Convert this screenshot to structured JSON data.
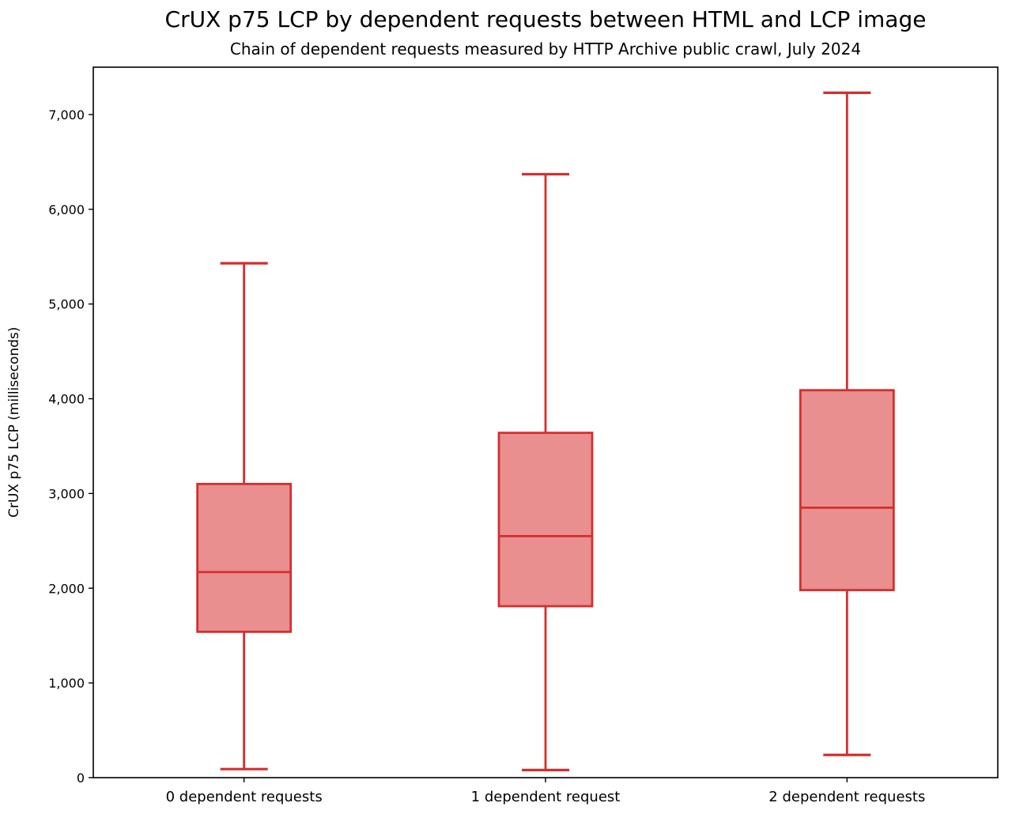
{
  "chart_data": {
    "type": "boxplot",
    "title": "CrUX p75 LCP by dependent requests between HTML and LCP image",
    "subtitle": "Chain of dependent requests measured by HTTP Archive public crawl, July 2024",
    "ylabel": "CrUX p75 LCP (milliseconds)",
    "xlabel": "",
    "categories": [
      "0 dependent requests",
      "1 dependent request",
      "2 dependent requests"
    ],
    "boxes": [
      {
        "whisker_low": 90,
        "q1": 1540,
        "median": 2170,
        "q3": 3100,
        "whisker_high": 5430
      },
      {
        "whisker_low": 80,
        "q1": 1810,
        "median": 2550,
        "q3": 3640,
        "whisker_high": 6370
      },
      {
        "whisker_low": 240,
        "q1": 1980,
        "median": 2850,
        "q3": 4090,
        "whisker_high": 7230
      }
    ],
    "ylim": [
      0,
      7500
    ],
    "yticks": [
      0,
      1000,
      2000,
      3000,
      4000,
      5000,
      6000,
      7000
    ],
    "ytick_labels": [
      "0",
      "1,000",
      "2,000",
      "3,000",
      "4,000",
      "5,000",
      "6,000",
      "7,000"
    ],
    "grid": false,
    "legend": "none",
    "colors": {
      "box_edge": "#d62e2e",
      "box_fill": "#e98f8f",
      "axis": "#000000",
      "background": "#ffffff"
    }
  }
}
